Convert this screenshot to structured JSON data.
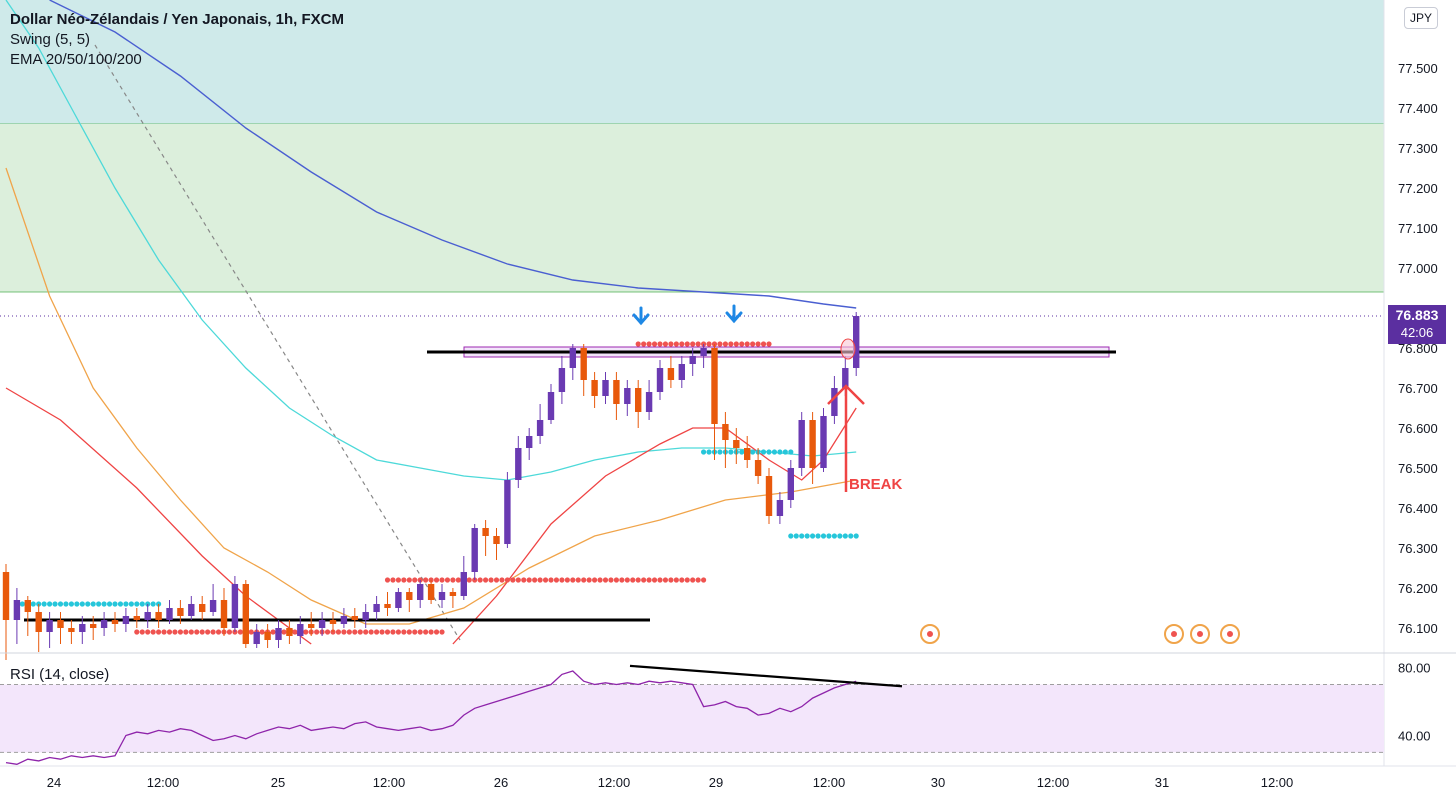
{
  "legend": {
    "title": "Dollar Néo-Zélandais / Yen Japonais, 1h, FXCM",
    "swing": "Swing (5, 5)",
    "ema": "EMA 20/50/100/200"
  },
  "currency_badge": "JPY",
  "price_tag": {
    "price": "76.883",
    "countdown": "42:06"
  },
  "rsi_label": "RSI (14, close)",
  "break_label": "BREAK",
  "colors": {
    "bull": "#6a3ab2",
    "bear": "#e8590c",
    "ema20": "#ef4444",
    "ema50": "#f0a44a",
    "ema100": "#4dd9d9",
    "ema200": "#4a5fd1",
    "zone_top": "#cfeaea",
    "zone_mid": "#dcefdc",
    "rsi_band": "#f3e6fb",
    "rsi_line": "#8e24aa",
    "swing_high": "#ef5350",
    "swing_low": "#26c6da"
  },
  "chart_data": [
    {
      "type": "candlestick",
      "symbol": "NZD/JPY",
      "timeframe": "1h",
      "ylim": [
        76.04,
        77.67
      ],
      "y_ticks": [
        "77.500",
        "77.400",
        "77.300",
        "77.200",
        "77.100",
        "77.000",
        "76.800",
        "76.700",
        "76.600",
        "76.500",
        "76.400",
        "76.300",
        "76.200",
        "76.100"
      ],
      "x_ticks": [
        "24",
        "12:00",
        "25",
        "12:00",
        "26",
        "12:00",
        "29",
        "12:00",
        "30",
        "12:00",
        "31",
        "12:00"
      ],
      "zones": [
        {
          "from": 77.36,
          "to": 77.67,
          "color": "#cfeaea"
        },
        {
          "from": 76.94,
          "to": 77.36,
          "color": "#dcefdc"
        }
      ],
      "levels": [
        {
          "name": "support",
          "value": 76.12
        },
        {
          "name": "resistance",
          "value": 76.79
        }
      ],
      "candles": [
        [
          76.24,
          76.12,
          76.26,
          76.02
        ],
        [
          76.12,
          76.17,
          76.2,
          76.06
        ],
        [
          76.17,
          76.14,
          76.18,
          76.08
        ],
        [
          76.14,
          76.09,
          76.16,
          76.04
        ],
        [
          76.09,
          76.12,
          76.14,
          76.05
        ],
        [
          76.12,
          76.1,
          76.14,
          76.06
        ],
        [
          76.1,
          76.09,
          76.12,
          76.06
        ],
        [
          76.09,
          76.11,
          76.13,
          76.06
        ],
        [
          76.11,
          76.1,
          76.13,
          76.07
        ],
        [
          76.1,
          76.12,
          76.14,
          76.08
        ],
        [
          76.12,
          76.11,
          76.14,
          76.09
        ],
        [
          76.11,
          76.13,
          76.15,
          76.09
        ],
        [
          76.13,
          76.12,
          76.15,
          76.1
        ],
        [
          76.12,
          76.14,
          76.16,
          76.1
        ],
        [
          76.14,
          76.12,
          76.16,
          76.1
        ],
        [
          76.12,
          76.15,
          76.17,
          76.11
        ],
        [
          76.15,
          76.13,
          76.17,
          76.11
        ],
        [
          76.13,
          76.16,
          76.18,
          76.12
        ],
        [
          76.16,
          76.14,
          76.18,
          76.12
        ],
        [
          76.14,
          76.17,
          76.21,
          76.13
        ],
        [
          76.17,
          76.1,
          76.2,
          76.08
        ],
        [
          76.1,
          76.21,
          76.23,
          76.09
        ],
        [
          76.21,
          76.06,
          76.22,
          76.05
        ],
        [
          76.06,
          76.09,
          76.11,
          76.05
        ],
        [
          76.09,
          76.07,
          76.11,
          76.05
        ],
        [
          76.07,
          76.1,
          76.12,
          76.05
        ],
        [
          76.1,
          76.08,
          76.12,
          76.06
        ],
        [
          76.08,
          76.11,
          76.13,
          76.06
        ],
        [
          76.11,
          76.1,
          76.14,
          76.08
        ],
        [
          76.1,
          76.12,
          76.14,
          76.08
        ],
        [
          76.12,
          76.11,
          76.14,
          76.09
        ],
        [
          76.11,
          76.13,
          76.15,
          76.1
        ],
        [
          76.13,
          76.12,
          76.15,
          76.1
        ],
        [
          76.12,
          76.14,
          76.16,
          76.1
        ],
        [
          76.14,
          76.16,
          76.18,
          76.12
        ],
        [
          76.16,
          76.15,
          76.19,
          76.13
        ],
        [
          76.15,
          76.19,
          76.2,
          76.14
        ],
        [
          76.19,
          76.17,
          76.2,
          76.14
        ],
        [
          76.17,
          76.21,
          76.22,
          76.15
        ],
        [
          76.21,
          76.17,
          76.22,
          76.16
        ],
        [
          76.17,
          76.19,
          76.21,
          76.15
        ],
        [
          76.19,
          76.18,
          76.2,
          76.15
        ],
        [
          76.18,
          76.24,
          76.28,
          76.17
        ],
        [
          76.24,
          76.35,
          76.36,
          76.22
        ],
        [
          76.35,
          76.33,
          76.37,
          76.28
        ],
        [
          76.33,
          76.31,
          76.35,
          76.27
        ],
        [
          76.31,
          76.47,
          76.49,
          76.3
        ],
        [
          76.47,
          76.55,
          76.58,
          76.45
        ],
        [
          76.55,
          76.58,
          76.6,
          76.52
        ],
        [
          76.58,
          76.62,
          76.66,
          76.56
        ],
        [
          76.62,
          76.69,
          76.71,
          76.61
        ],
        [
          76.69,
          76.75,
          76.78,
          76.66
        ],
        [
          76.75,
          76.8,
          76.81,
          76.72
        ],
        [
          76.8,
          76.72,
          76.81,
          76.68
        ],
        [
          76.72,
          76.68,
          76.74,
          76.65
        ],
        [
          76.68,
          76.72,
          76.74,
          76.66
        ],
        [
          76.72,
          76.66,
          76.74,
          76.62
        ],
        [
          76.66,
          76.7,
          76.72,
          76.63
        ],
        [
          76.7,
          76.64,
          76.72,
          76.6
        ],
        [
          76.64,
          76.69,
          76.72,
          76.62
        ],
        [
          76.69,
          76.75,
          76.77,
          76.67
        ],
        [
          76.75,
          76.72,
          76.78,
          76.7
        ],
        [
          76.72,
          76.76,
          76.78,
          76.7
        ],
        [
          76.76,
          76.78,
          76.8,
          76.73
        ],
        [
          76.78,
          76.8,
          76.81,
          76.75
        ],
        [
          76.8,
          76.61,
          76.81,
          76.52
        ],
        [
          76.61,
          76.57,
          76.64,
          76.5
        ],
        [
          76.57,
          76.55,
          76.6,
          76.51
        ],
        [
          76.55,
          76.52,
          76.58,
          76.5
        ],
        [
          76.52,
          76.48,
          76.55,
          76.46
        ],
        [
          76.48,
          76.38,
          76.5,
          76.36
        ],
        [
          76.38,
          76.42,
          76.44,
          76.36
        ],
        [
          76.42,
          76.5,
          76.52,
          76.4
        ],
        [
          76.5,
          76.62,
          76.64,
          76.48
        ],
        [
          76.62,
          76.5,
          76.64,
          76.46
        ],
        [
          76.5,
          76.63,
          76.65,
          76.49
        ],
        [
          76.63,
          76.7,
          76.73,
          76.61
        ],
        [
          76.7,
          76.75,
          76.78,
          76.68
        ],
        [
          76.75,
          76.88,
          76.89,
          76.73
        ]
      ],
      "ema20": [
        [
          0,
          76.7
        ],
        [
          5,
          76.62
        ],
        [
          12,
          76.45
        ],
        [
          18,
          76.28
        ],
        [
          22,
          76.18
        ],
        [
          28,
          76.06
        ]
      ],
      "ema20b": [
        [
          41,
          76.06
        ],
        [
          45,
          76.18
        ],
        [
          50,
          76.36
        ],
        [
          55,
          76.48
        ],
        [
          60,
          76.56
        ],
        [
          63,
          76.6
        ],
        [
          66,
          76.6
        ],
        [
          70,
          76.52
        ],
        [
          73,
          76.47
        ],
        [
          75,
          76.52
        ],
        [
          78,
          76.65
        ]
      ],
      "ema50": [
        [
          0,
          77.25
        ],
        [
          4,
          76.93
        ],
        [
          8,
          76.7
        ],
        [
          12,
          76.55
        ],
        [
          16,
          76.42
        ],
        [
          20,
          76.3
        ],
        [
          24,
          76.24
        ],
        [
          28,
          76.17
        ],
        [
          33,
          76.11
        ],
        [
          37,
          76.11
        ],
        [
          42,
          76.15
        ],
        [
          48,
          76.25
        ],
        [
          54,
          76.33
        ],
        [
          60,
          76.37
        ],
        [
          66,
          76.42
        ],
        [
          72,
          76.44
        ],
        [
          76,
          76.46
        ],
        [
          78,
          76.47
        ]
      ],
      "ema100": [
        [
          0,
          77.67
        ],
        [
          3,
          77.55
        ],
        [
          6,
          77.4
        ],
        [
          10,
          77.2
        ],
        [
          14,
          77.02
        ],
        [
          18,
          76.87
        ],
        [
          22,
          76.75
        ],
        [
          26,
          76.65
        ],
        [
          30,
          76.58
        ],
        [
          34,
          76.52
        ],
        [
          38,
          76.5
        ],
        [
          42,
          76.48
        ],
        [
          46,
          76.47
        ],
        [
          50,
          76.49
        ],
        [
          54,
          76.52
        ],
        [
          58,
          76.54
        ],
        [
          62,
          76.55
        ],
        [
          66,
          76.55
        ],
        [
          70,
          76.54
        ],
        [
          74,
          76.53
        ],
        [
          78,
          76.54
        ]
      ],
      "ema200": [
        [
          4,
          77.67
        ],
        [
          10,
          77.59
        ],
        [
          16,
          77.48
        ],
        [
          22,
          77.35
        ],
        [
          28,
          77.24
        ],
        [
          34,
          77.14
        ],
        [
          40,
          77.07
        ],
        [
          46,
          77.01
        ],
        [
          52,
          76.97
        ],
        [
          58,
          76.95
        ],
        [
          64,
          76.94
        ],
        [
          70,
          76.93
        ],
        [
          75,
          76.91
        ],
        [
          78,
          76.9
        ]
      ],
      "swing_highs": [
        {
          "value": 76.22,
          "from": 35,
          "to": 64
        },
        {
          "value": 76.09,
          "from": 12,
          "to": 40
        },
        {
          "value": 76.81,
          "from": 58,
          "to": 70
        }
      ],
      "swing_lows": [
        {
          "value": 76.16,
          "from": 1,
          "to": 14
        },
        {
          "value": 76.54,
          "from": 64,
          "to": 72
        },
        {
          "value": 76.33,
          "from": 72,
          "to": 78
        }
      ]
    },
    {
      "type": "line",
      "name": "RSI (14, close)",
      "ylim": [
        22,
        88
      ],
      "y_ticks": [
        "80.00",
        "40.00"
      ],
      "band": [
        30,
        70
      ],
      "values": [
        24,
        23,
        26,
        25,
        27,
        26,
        28,
        27,
        28,
        27,
        28,
        40,
        42,
        41,
        43,
        42,
        44,
        43,
        40,
        37,
        38,
        40,
        38,
        41,
        43,
        45,
        44,
        46,
        43,
        44,
        45,
        44,
        47,
        48,
        45,
        44,
        43,
        44,
        45,
        43,
        44,
        46,
        52,
        56,
        58,
        60,
        62,
        64,
        66,
        68,
        70,
        76,
        78,
        72,
        70,
        71,
        70,
        71,
        70,
        72,
        71,
        72,
        71,
        70,
        57,
        58,
        60,
        57,
        56,
        52,
        53,
        56,
        54,
        57,
        62,
        65,
        68,
        70,
        72
      ]
    }
  ]
}
